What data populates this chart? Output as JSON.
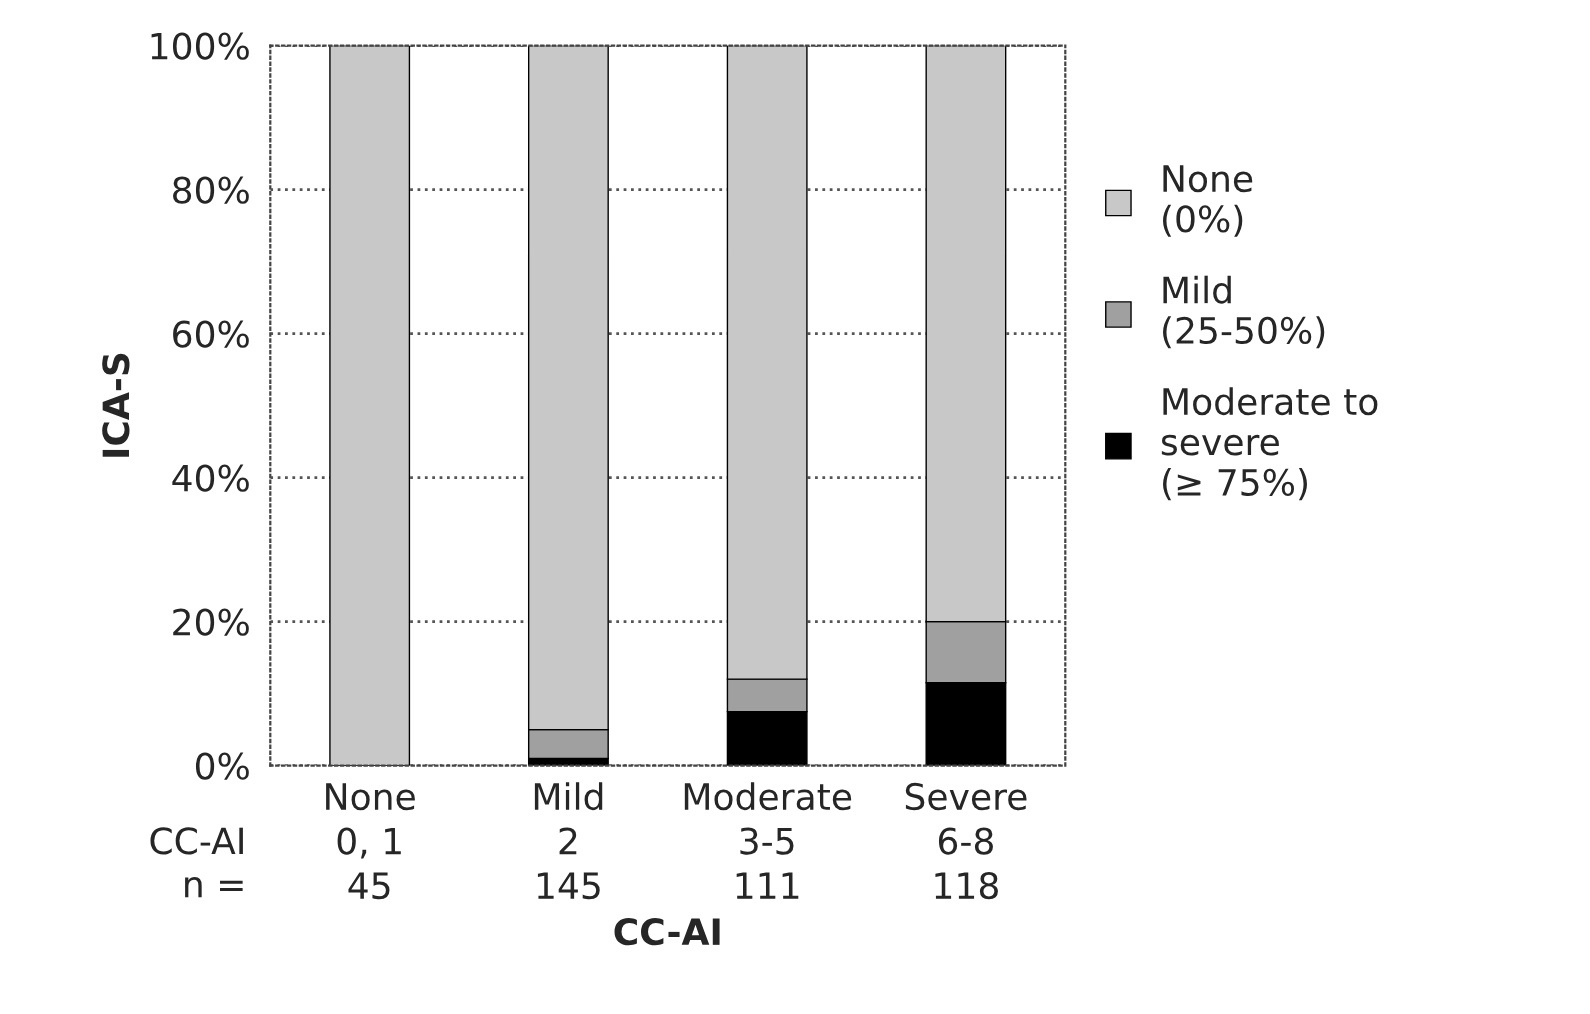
{
  "chart_data": {
    "type": "bar",
    "stacked": true,
    "xlabel": "CC-AI",
    "ylabel": "ICA-S",
    "categories": [
      "None\n0, 1\n45",
      "Mild\n2\n145",
      "Moderate\n3-5\n111",
      "Severe\n6-8\n118"
    ],
    "series": [
      {
        "name": "Moderate to\nsevere\n(≥ 75%)",
        "color": "#000000",
        "values": [
          0,
          1,
          7.5,
          11.5
        ]
      },
      {
        "name": "Mild\n(25-50%)",
        "color": "#a0a0a0",
        "values": [
          0,
          4,
          4.5,
          8.5
        ]
      },
      {
        "name": "None\n(0%)",
        "color": "#c8c8c8",
        "values": [
          100,
          95,
          88,
          80
        ]
      }
    ],
    "ylim": [
      0,
      100
    ],
    "yticks": [
      {
        "value": 0,
        "label": "0%"
      },
      {
        "value": 20,
        "label": "20%"
      },
      {
        "value": 40,
        "label": "40%"
      },
      {
        "value": 60,
        "label": "60%"
      },
      {
        "value": 80,
        "label": "80%"
      },
      {
        "value": 100,
        "label": "100%"
      }
    ],
    "grid": "y",
    "legend": "right",
    "annotations": [
      "CC-AI",
      "n ="
    ]
  }
}
